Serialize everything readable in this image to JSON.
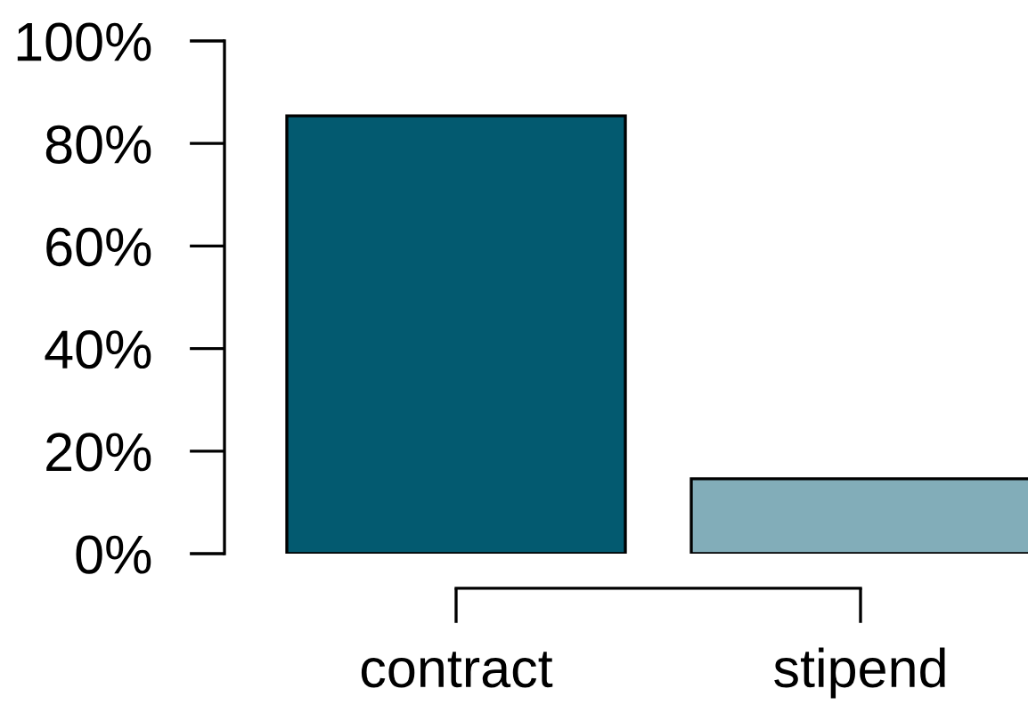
{
  "chart_data": {
    "type": "bar",
    "categories": [
      "contract",
      "stipend"
    ],
    "values": [
      85.4,
      14.6
    ],
    "colors": [
      "#035a70",
      "#82adb9"
    ],
    "ylim": [
      0,
      100
    ],
    "yticks": [
      {
        "value": 0,
        "label": "0%"
      },
      {
        "value": 20,
        "label": "20%"
      },
      {
        "value": 40,
        "label": "40%"
      },
      {
        "value": 60,
        "label": "60%"
      },
      {
        "value": 80,
        "label": "80%"
      },
      {
        "value": 100,
        "label": "100%"
      }
    ],
    "grid": false,
    "legend": false
  }
}
